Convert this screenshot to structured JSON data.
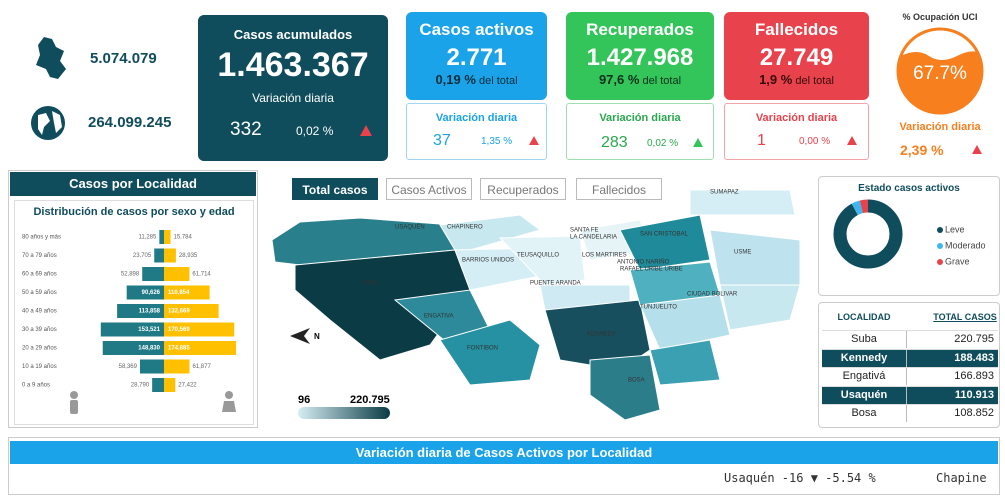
{
  "header": {
    "colombia_total": "5.074.079",
    "world_total": "264.099.245"
  },
  "cards": {
    "acumulados": {
      "title": "Casos acumulados",
      "value": "1.463.367",
      "variation_label": "Variación diaria",
      "variation": "332",
      "variation_pct": "0,02 %"
    },
    "activos": {
      "title": "Casos activos",
      "value": "2.771",
      "share": "0,19 %",
      "share_label": "del total",
      "variation_label": "Variación diaria",
      "variation": "37",
      "variation_pct": "1,35 %"
    },
    "recuperados": {
      "title": "Recuperados",
      "value": "1.427.968",
      "share": "97,6 %",
      "share_label": "del total",
      "variation_label": "Variación diaria",
      "variation": "283",
      "variation_pct": "0,02 %"
    },
    "fallecidos": {
      "title": "Fallecidos",
      "value": "27.749",
      "share": "1,9 %",
      "share_label": "del total",
      "variation_label": "Variación diaria",
      "variation": "1",
      "variation_pct": "0,00 %"
    },
    "uci": {
      "title": "% Ocupación UCI",
      "value": "67.7%",
      "variation_label": "Variación diaria",
      "variation_pct": "2,39 %"
    }
  },
  "localidad_panel": {
    "title": "Casos por Localidad"
  },
  "pyramid": {
    "title": "Distribución de casos por sexo y edad",
    "categories": [
      "80 años y más",
      "70 a 79 años",
      "60 a 69 años",
      "50 a 59 años",
      "40 a 49 años",
      "30 a 39 años",
      "20 a 29 años",
      "10 a 19 años",
      "0 a 9 años"
    ],
    "male": {
      "color": "#1f7a86",
      "values": [
        11285,
        23705,
        52898,
        90626,
        113858,
        153521,
        148830,
        58369,
        28790
      ],
      "value_labels": [
        "11,285",
        "23,705",
        "52,898",
        "90,626",
        "113,858",
        "153,521",
        "148,830",
        "58,369",
        "28,790"
      ]
    },
    "female": {
      "color": "#ffc000",
      "values": [
        15784,
        28935,
        61714,
        110854,
        132669,
        170569,
        174885,
        61877,
        27422
      ],
      "value_labels": [
        "15,784",
        "28,935",
        "61,714",
        "110,854",
        "132,669",
        "170,569",
        "174,885",
        "61,877",
        "27,422"
      ]
    }
  },
  "map": {
    "tabs": [
      "Total casos",
      "Casos Activos",
      "Recuperados",
      "Fallecidos"
    ],
    "labels": [
      "USAQUÉN",
      "CHAPINERO",
      "SANTA FE",
      "LA CANDELARIA",
      "SAN CRISTOBAL",
      "BARRIOS UNIDOS",
      "TEUSAQUILLO",
      "LOS MARTIRES",
      "ANTONIO NARIÑO",
      "RAFAEL URIBE URIBE",
      "USME",
      "SUMAPAZ",
      "SUBA",
      "PUENTE ARANDA",
      "ENGATIVA",
      "FONTIBON",
      "KENNEDY",
      "TUNJUELITO",
      "CIUDAD BOLIVAR",
      "BOSA"
    ],
    "compass": "N",
    "legend_min": "96",
    "legend_max": "220.795"
  },
  "estado": {
    "title": "Estado casos activos",
    "categories": [
      "Leve",
      "Moderado",
      "Grave"
    ],
    "values": [
      92,
      4,
      4
    ],
    "colors": [
      "#0f4c5c",
      "#3fb6f0",
      "#e8434c"
    ]
  },
  "table": {
    "headers": [
      "LOCALIDAD",
      "TOTAL CASOS"
    ],
    "rows": [
      [
        "Suba",
        "220.795"
      ],
      [
        "Kennedy",
        "188.483"
      ],
      [
        "Engativá",
        "166.893"
      ],
      [
        "Usaquén",
        "110.913"
      ],
      [
        "Bosa",
        "108.852"
      ]
    ]
  },
  "ticker": {
    "title": "Variación diaria de Casos Activos por Localidad",
    "items": [
      "Usaquén -16 ▼ -5.54 %",
      "Chapine"
    ]
  }
}
